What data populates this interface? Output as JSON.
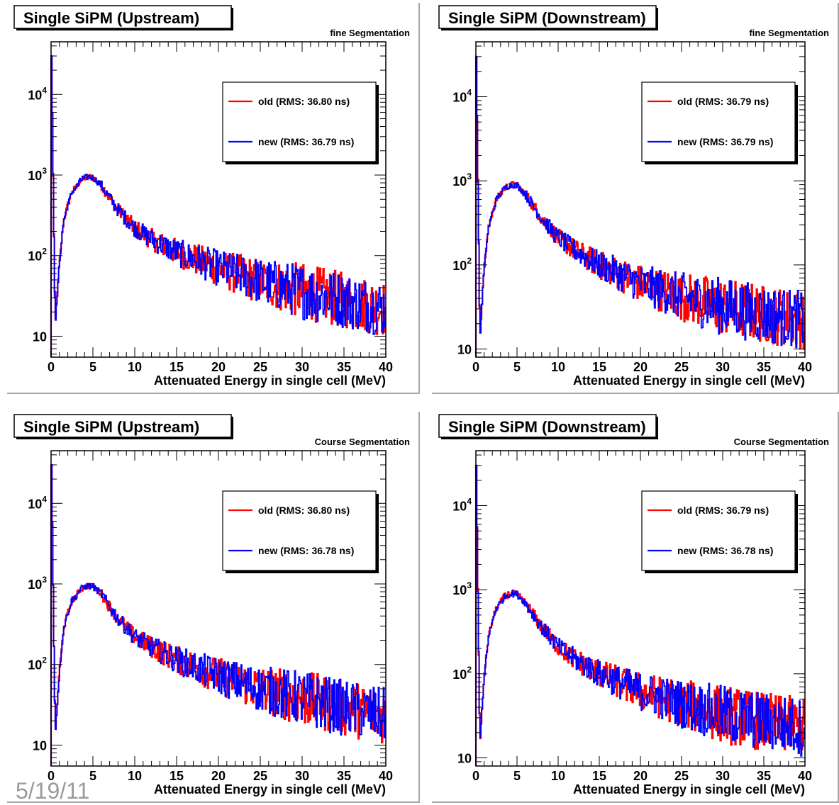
{
  "footer_date": "5/19/11",
  "colors": {
    "old": "#ff0000",
    "new": "#0000ff",
    "frame": "#000000",
    "panel_border": "#a8a8a8"
  },
  "chart_data": [
    {
      "type": "line",
      "title": "Single SiPM (Upstream)",
      "subtitle": "fine Segmentation",
      "xlabel": "Attenuated Energy in single cell (MeV)",
      "ylabel": "",
      "xlim": [
        0,
        40
      ],
      "ylim": [
        5.5,
        45000
      ],
      "y_scale": "log",
      "xticks": [
        "0",
        "5",
        "10",
        "15",
        "20",
        "25",
        "30",
        "35",
        "40"
      ],
      "yticks": [
        {
          "base": "10",
          "exp": ""
        },
        {
          "base": "10",
          "exp": "2"
        },
        {
          "base": "10",
          "exp": "3"
        },
        {
          "base": "10",
          "exp": "4"
        }
      ],
      "legend_position": "top-right",
      "series": [
        {
          "name": "old (RMS: 36.80 ns)",
          "color": "#ff0000",
          "x": [
            0.05,
            0.5,
            1,
            1.5,
            2,
            2.5,
            3,
            3.5,
            4,
            4.5,
            5,
            6,
            7,
            8,
            10,
            12,
            15,
            20,
            25,
            30,
            35,
            40
          ],
          "y": [
            30000,
            14,
            80,
            270,
            420,
            620,
            700,
            850,
            920,
            950,
            930,
            750,
            520,
            370,
            220,
            160,
            110,
            70,
            48,
            36,
            28,
            22
          ]
        },
        {
          "name": "new (RMS: 36.79 ns)",
          "color": "#0000ff",
          "x": [
            0.05,
            0.5,
            1,
            1.5,
            2,
            2.5,
            3,
            3.5,
            4,
            4.5,
            5,
            6,
            7,
            8,
            10,
            12,
            15,
            20,
            25,
            30,
            35,
            40
          ],
          "y": [
            30000,
            14,
            80,
            270,
            420,
            620,
            700,
            850,
            920,
            950,
            930,
            750,
            520,
            370,
            220,
            160,
            110,
            70,
            48,
            36,
            28,
            22
          ]
        }
      ]
    },
    {
      "type": "line",
      "title": "Single SiPM (Downstream)",
      "subtitle": "fine Segmentation",
      "xlabel": "Attenuated Energy in single cell (MeV)",
      "ylabel": "",
      "xlim": [
        0,
        40
      ],
      "ylim": [
        8,
        45000
      ],
      "y_scale": "log",
      "xticks": [
        "0",
        "5",
        "10",
        "15",
        "20",
        "25",
        "30",
        "35",
        "40"
      ],
      "yticks": [
        {
          "base": "10",
          "exp": ""
        },
        {
          "base": "10",
          "exp": "2"
        },
        {
          "base": "10",
          "exp": "3"
        },
        {
          "base": "10",
          "exp": "4"
        }
      ],
      "legend_position": "top-right",
      "series": [
        {
          "name": "old (RMS: 36.79 ns)",
          "color": "#ff0000",
          "x": [
            0.05,
            0.5,
            1,
            1.5,
            2,
            2.5,
            3,
            3.5,
            4,
            4.5,
            5,
            6,
            7,
            8,
            10,
            12,
            15,
            20,
            25,
            30,
            35,
            40
          ],
          "y": [
            30000,
            14,
            90,
            260,
            420,
            600,
            700,
            820,
            880,
            900,
            880,
            700,
            500,
            360,
            210,
            150,
            100,
            60,
            42,
            32,
            26,
            22
          ]
        },
        {
          "name": "new (RMS: 36.79 ns)",
          "color": "#0000ff",
          "x": [
            0.05,
            0.5,
            1,
            1.5,
            2,
            2.5,
            3,
            3.5,
            4,
            4.5,
            5,
            6,
            7,
            8,
            10,
            12,
            15,
            20,
            25,
            30,
            35,
            40
          ],
          "y": [
            30000,
            14,
            90,
            260,
            420,
            600,
            700,
            820,
            880,
            900,
            880,
            700,
            500,
            360,
            210,
            150,
            100,
            60,
            42,
            32,
            26,
            22
          ]
        }
      ]
    },
    {
      "type": "line",
      "title": "Single SiPM (Upstream)",
      "subtitle": "Course Segmentation",
      "xlabel": "Attenuated Energy in single cell (MeV)",
      "ylabel": "",
      "xlim": [
        0,
        40
      ],
      "ylim": [
        5.5,
        45000
      ],
      "y_scale": "log",
      "xticks": [
        "0",
        "5",
        "10",
        "15",
        "20",
        "25",
        "30",
        "35",
        "40"
      ],
      "yticks": [
        {
          "base": "10",
          "exp": ""
        },
        {
          "base": "10",
          "exp": "2"
        },
        {
          "base": "10",
          "exp": "3"
        },
        {
          "base": "10",
          "exp": "4"
        }
      ],
      "legend_position": "top-right",
      "series": [
        {
          "name": "old (RMS: 36.80 ns)",
          "color": "#ff0000",
          "x": [
            0.05,
            0.5,
            1,
            1.5,
            2,
            2.5,
            3,
            3.5,
            4,
            4.5,
            5,
            6,
            7,
            8,
            10,
            12,
            15,
            20,
            25,
            30,
            35,
            40
          ],
          "y": [
            30000,
            14,
            80,
            280,
            430,
            630,
            700,
            860,
            920,
            950,
            930,
            760,
            520,
            370,
            220,
            165,
            115,
            72,
            50,
            38,
            29,
            23
          ]
        },
        {
          "name": "new (RMS: 36.78 ns)",
          "color": "#0000ff",
          "x": [
            0.05,
            0.5,
            1,
            1.5,
            2,
            2.5,
            3,
            3.5,
            4,
            4.5,
            5,
            6,
            7,
            8,
            10,
            12,
            15,
            20,
            25,
            30,
            35,
            40
          ],
          "y": [
            30000,
            14,
            80,
            280,
            430,
            630,
            700,
            860,
            920,
            950,
            930,
            760,
            520,
            370,
            220,
            165,
            115,
            72,
            50,
            38,
            29,
            23
          ]
        }
      ]
    },
    {
      "type": "line",
      "title": "Single SiPM (Downstream)",
      "subtitle": "Course Segmentation",
      "xlabel": "Attenuated Energy in single cell (MeV)",
      "ylabel": "",
      "xlim": [
        0,
        40
      ],
      "ylim": [
        8,
        45000
      ],
      "y_scale": "log",
      "xticks": [
        "0",
        "5",
        "10",
        "15",
        "20",
        "25",
        "30",
        "35",
        "40"
      ],
      "yticks": [
        {
          "base": "10",
          "exp": ""
        },
        {
          "base": "10",
          "exp": "2"
        },
        {
          "base": "10",
          "exp": "3"
        },
        {
          "base": "10",
          "exp": "4"
        }
      ],
      "legend_position": "top-right",
      "series": [
        {
          "name": "old (RMS: 36.79 ns)",
          "color": "#ff0000",
          "x": [
            0.05,
            0.5,
            1,
            1.5,
            2,
            2.5,
            3,
            3.5,
            4,
            4.5,
            5,
            6,
            7,
            8,
            10,
            12,
            15,
            20,
            25,
            30,
            35,
            40
          ],
          "y": [
            30000,
            14,
            90,
            260,
            420,
            610,
            700,
            830,
            880,
            900,
            880,
            700,
            500,
            360,
            210,
            150,
            100,
            62,
            44,
            33,
            27,
            23
          ]
        },
        {
          "name": "new (RMS: 36.78 ns)",
          "color": "#0000ff",
          "x": [
            0.05,
            0.5,
            1,
            1.5,
            2,
            2.5,
            3,
            3.5,
            4,
            4.5,
            5,
            6,
            7,
            8,
            10,
            12,
            15,
            20,
            25,
            30,
            35,
            40
          ],
          "y": [
            30000,
            14,
            90,
            260,
            420,
            610,
            700,
            830,
            880,
            900,
            880,
            700,
            500,
            360,
            210,
            150,
            100,
            62,
            44,
            33,
            27,
            23
          ]
        }
      ]
    }
  ]
}
